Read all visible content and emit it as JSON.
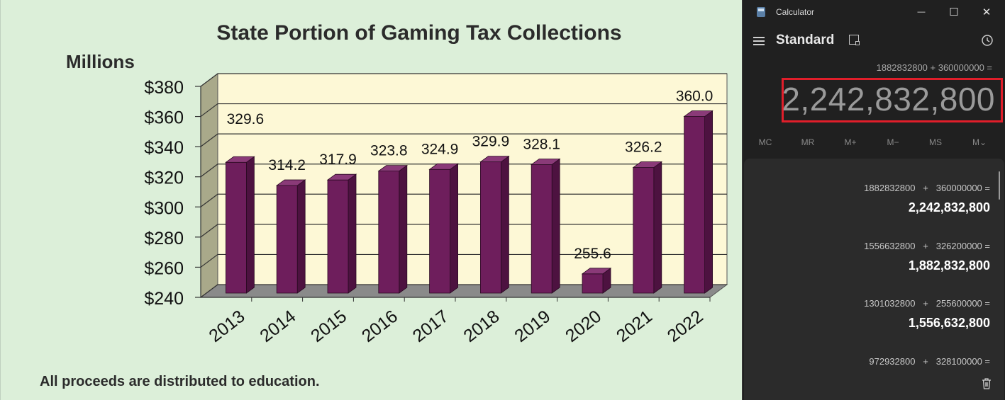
{
  "chart": {
    "title": "State Portion of Gaming Tax Collections",
    "units_label": "Millions",
    "footnote": "All proceeds are distributed to education.",
    "colors": {
      "bar_front": "#6e1e5c",
      "bar_side": "#4d1240",
      "bar_top": "#8a3a78",
      "plot_bg": "#fdf8d6",
      "floor": "#8a8a8a",
      "wall": "#a9a98a"
    }
  },
  "chart_data": {
    "type": "bar",
    "title": "State Portion of Gaming Tax Collections",
    "ylabel": "Millions",
    "xlabel": "",
    "categories": [
      "2013",
      "2014",
      "2015",
      "2016",
      "2017",
      "2018",
      "2019",
      "2020",
      "2021",
      "2022"
    ],
    "values": [
      329.6,
      314.2,
      317.9,
      323.8,
      324.9,
      329.9,
      328.1,
      255.6,
      326.2,
      360.0
    ],
    "value_labels": [
      "329.6",
      "314.2",
      "317.9",
      "323.8",
      "324.9",
      "329.9",
      "328.1",
      "255.6",
      "326.2",
      "360.0"
    ],
    "ylim": [
      240,
      380
    ],
    "yticks": [
      "$240",
      "$260",
      "$280",
      "$300",
      "$320",
      "$340",
      "$360",
      "$380"
    ],
    "ytick_values": [
      240,
      260,
      280,
      300,
      320,
      340,
      360,
      380
    ],
    "grid": true,
    "style": "3d"
  },
  "calculator": {
    "app_title": "Calculator",
    "mode": "Standard",
    "expression": "1882832800 + 360000000 =",
    "result": "2,242,832,800",
    "memory_buttons": [
      "MC",
      "MR",
      "M+",
      "M−",
      "MS",
      "M⌄"
    ],
    "window_buttons": {
      "minimize": "—",
      "maximize": "☐",
      "close": "✕"
    },
    "history": [
      {
        "expression": "1882832800   +   360000000 =",
        "result": "2,242,832,800"
      },
      {
        "expression": "1556632800   +   326200000 =",
        "result": "1,882,832,800"
      },
      {
        "expression": "1301032800   +   255600000 =",
        "result": "1,556,632,800"
      },
      {
        "expression": "972932800   +   328100000 =",
        "result": ""
      }
    ],
    "icons": [
      "hamburger-icon",
      "keep-on-top-icon",
      "history-icon",
      "trash-icon"
    ]
  }
}
